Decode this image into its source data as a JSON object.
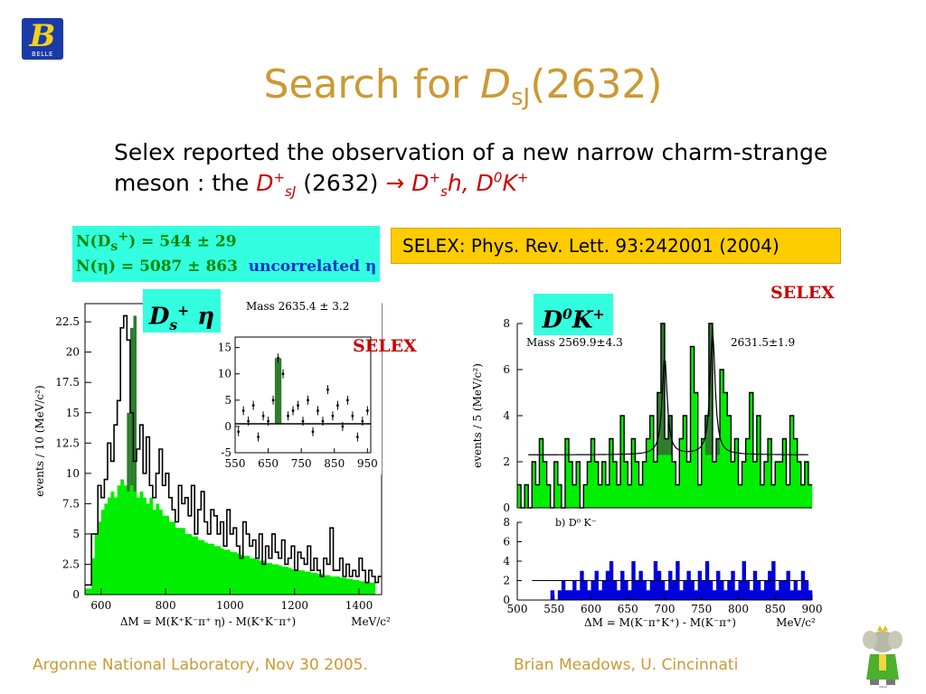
{
  "logo": {
    "letter": "B",
    "text": "BELLE"
  },
  "title": {
    "main": "Search for ",
    "italic": "D",
    "sub": "sJ",
    "suffix": "(2632)"
  },
  "intro": {
    "line1": "Selex reported the observation of a new narrow charm-strange",
    "line2_prefix": "meson : the ",
    "state": "D",
    "state_sup": "+",
    "state_sub": "sJ",
    "mass": " (2632) ",
    "arrow": "→",
    "decay1": "D",
    "decay1_sup": "+",
    "decay1_sub": "s",
    "decay1_suffix": "h, ",
    "decay2": "D",
    "decay2_sup": "0",
    "decay2_k": "K",
    "decay2_k_sup": "+"
  },
  "yield_box": {
    "line1_prefix": "N(D",
    "line1_sub": "s",
    "line1_sup": "+",
    "line1_suffix": ") = 544 ± 29",
    "line2": "N(η) = 5087  ± 863",
    "line2_blue": "uncorrelated η"
  },
  "ref_box": {
    "text": "SELEX: Phys. Rev. Lett. 93:242001 (2004)"
  },
  "label_left": {
    "text": "D",
    "sub": "s",
    "sup": "+",
    "suffix": " η"
  },
  "label_right": {
    "text": "D",
    "sup": "0",
    "k": "K",
    "k_sup": "+"
  },
  "selex_left": "SELEX",
  "selex_right": "SELEX",
  "colors": {
    "title": "#cc9933",
    "green_fill": "#00ee00",
    "dark_peak": "#2e7d2e",
    "blue_fill": "#0000dd",
    "cyan_box": "#33ffe0",
    "yellow_box": "#ffcc00",
    "red": "#cc0000"
  },
  "footer": {
    "left": "Argonne National Laboratory, Nov 30 2005.",
    "right": "Brian Meadows, U. Cincinnati"
  },
  "chart_data": [
    {
      "id": "ds_eta_main",
      "type": "bar",
      "ylabel": "events / 10 (MeV/c²)",
      "xlabel": "ΔM = M(K⁺K⁻π⁺ η) - M(K⁺K⁻π⁺)",
      "xunit": "MeV/c²",
      "xlim": [
        550,
        1470
      ],
      "ylim": [
        0,
        24
      ],
      "xticks": [
        "600",
        "800",
        "1000",
        "1200",
        "1400"
      ],
      "yticks": [
        "0",
        "2.5",
        "5",
        "7.5",
        "10",
        "12.5",
        "15",
        "17.5",
        "20",
        "22.5"
      ],
      "bin_width": 10,
      "x_start": 550,
      "series": [
        {
          "style": "outline",
          "values": [
            0.8,
            0.8,
            5,
            5,
            9,
            8,
            9.5,
            12.5,
            11,
            14,
            16,
            22,
            23,
            21,
            15,
            11,
            12,
            14,
            10,
            13,
            9,
            8,
            10,
            12,
            9,
            10,
            8,
            7,
            6,
            9,
            7.5,
            8,
            6.5,
            9,
            5,
            7,
            8.5,
            6,
            5,
            7,
            6.5,
            5,
            6,
            4,
            7,
            5,
            5.5,
            4,
            3,
            6,
            5,
            4,
            4.5,
            3,
            5,
            2.5,
            4,
            3,
            5,
            3.5,
            3,
            4.5,
            2.5,
            3,
            4,
            2,
            3.5,
            3,
            2.5,
            4,
            2,
            3,
            2,
            1.5,
            3,
            2.5,
            5.5,
            2,
            2,
            3,
            1.5,
            2.5,
            1.5,
            2,
            1.5,
            3,
            2,
            1,
            2,
            1.5,
            1,
            1.5
          ]
        },
        {
          "style": "filled",
          "values": [
            0.5,
            0.5,
            3,
            5,
            6,
            7,
            7.5,
            8,
            8.5,
            8,
            9,
            9.5,
            9,
            8.5,
            9,
            8.5,
            8,
            8.5,
            8,
            7.5,
            8,
            7,
            7.5,
            7,
            6.5,
            6.5,
            6,
            6,
            5.5,
            5.5,
            5.5,
            5,
            5,
            4.8,
            4.8,
            4.5,
            4.5,
            4.3,
            4.2,
            4.2,
            4,
            4,
            3.8,
            3.7,
            3.7,
            3.5,
            3.5,
            3.4,
            3.3,
            3.2,
            3.2,
            3,
            3,
            2.9,
            2.8,
            2.8,
            2.6,
            2.6,
            2.5,
            2.5,
            2.4,
            2.3,
            2.3,
            2.2,
            2.1,
            2.1,
            2,
            2,
            1.9,
            1.9,
            1.8,
            1.8,
            1.7,
            1.7,
            1.6,
            1.6,
            1.5,
            1.5,
            1.5,
            1.4,
            1.4,
            1.3,
            1.3,
            1.2,
            1.2,
            1.1,
            1.1,
            1,
            1,
            1
          ]
        },
        {
          "style": "peak",
          "range": [
            680,
            710
          ],
          "values": [
            15,
            22,
            23
          ]
        }
      ]
    },
    {
      "id": "ds_eta_inset",
      "type": "scatter",
      "annotation": "Mass   2635.4 ± 3.2",
      "xlim": [
        550,
        960
      ],
      "ylim": [
        -5,
        17
      ],
      "xticks": [
        "550",
        "650",
        "750",
        "850",
        "950"
      ],
      "yticks": [
        "-5",
        "0",
        "5",
        "10",
        "15"
      ],
      "x": [
        560,
        575,
        590,
        605,
        620,
        635,
        650,
        665,
        680,
        695,
        710,
        725,
        740,
        755,
        770,
        785,
        800,
        815,
        830,
        845,
        860,
        875,
        890,
        905,
        920,
        935,
        950
      ],
      "y": [
        -1,
        3,
        1,
        4,
        -2,
        2,
        1,
        5,
        13,
        10,
        2,
        3,
        4,
        1,
        5,
        -1,
        3,
        1,
        7,
        2,
        4,
        0,
        5,
        2,
        -2,
        1,
        3
      ],
      "fit_level": 0.5,
      "peak_x": 680,
      "peak_height": 13
    },
    {
      "id": "d0k_top",
      "type": "bar",
      "ylabel": "events / 5 (MeV/c²)",
      "annotations": [
        "Mass   2569.9±4.3",
        "2631.5±1.9"
      ],
      "xlim": [
        500,
        900
      ],
      "ylim": [
        0,
        8
      ],
      "yticks": [
        "0",
        "2",
        "4",
        "6",
        "8"
      ],
      "bin_width": 5,
      "x_start": 500,
      "values": [
        1,
        0,
        1,
        0,
        2,
        1,
        3,
        2,
        1,
        0,
        2,
        1,
        0,
        3,
        2,
        1,
        2,
        0,
        1,
        2,
        3,
        2,
        1,
        2,
        1,
        3,
        2,
        1,
        4,
        2,
        1,
        3,
        2,
        1,
        2,
        3,
        4,
        2,
        5,
        8,
        3,
        4,
        2,
        1,
        3,
        4,
        2,
        7,
        5,
        1,
        3,
        4,
        8,
        2,
        3,
        6,
        5,
        4,
        2,
        3,
        1,
        2,
        3,
        5,
        2,
        4,
        1,
        2,
        3,
        1,
        2,
        2,
        3,
        1,
        4,
        3,
        2,
        1,
        2,
        1
      ],
      "fit_background": 2.3,
      "peaks": [
        {
          "x": 700,
          "height": 6.6
        },
        {
          "x": 765,
          "height": 7.8
        }
      ]
    },
    {
      "id": "d0k_bottom",
      "type": "bar",
      "label": "b) D⁰ K⁻",
      "xlabel": "ΔM = M(K⁻π⁺K⁺) - M(K⁻π⁺)",
      "xunit": "MeV/c²",
      "xlim": [
        500,
        900
      ],
      "ylim": [
        0,
        8
      ],
      "xticks": [
        "500",
        "550",
        "600",
        "650",
        "700",
        "750",
        "800",
        "850",
        "900"
      ],
      "yticks": [
        "0",
        "2",
        "4",
        "6",
        "8"
      ],
      "bin_width": 5,
      "x_start": 500,
      "values": [
        0,
        0,
        0,
        0,
        0,
        0,
        0,
        0,
        0,
        1,
        0,
        1,
        2,
        1,
        1,
        2,
        1,
        3,
        2,
        1,
        2,
        3,
        1,
        2,
        3,
        4,
        2,
        1,
        3,
        2,
        1,
        4,
        2,
        3,
        2,
        1,
        2,
        4,
        3,
        2,
        1,
        3,
        2,
        4,
        1,
        2,
        3,
        2,
        1,
        3,
        2,
        4,
        2,
        1,
        3,
        2,
        1,
        2,
        3,
        1,
        2,
        4,
        2,
        1,
        3,
        2,
        1,
        2,
        3,
        4,
        1,
        2,
        2,
        3,
        1,
        2,
        1,
        3,
        2,
        1
      ],
      "fit_level": 2.0
    }
  ]
}
